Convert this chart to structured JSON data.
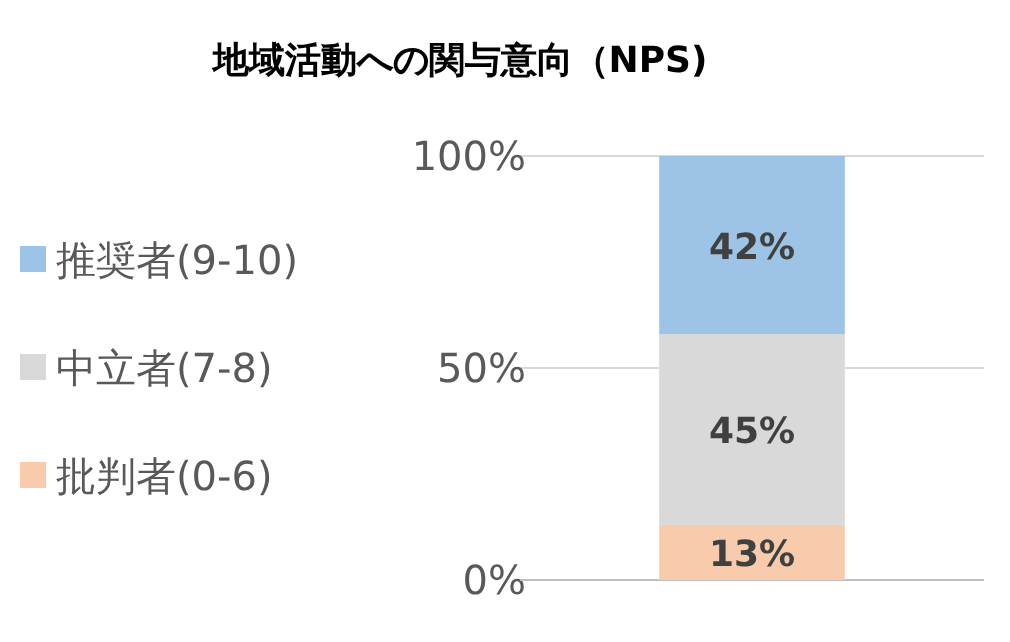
{
  "chart_data": {
    "type": "bar",
    "stacked": true,
    "title": "地域活動への関与意向（NPS)",
    "categories": [
      null
    ],
    "series": [
      {
        "name": "批判者(0-6)",
        "color": "#f8cbad",
        "values": [
          13
        ],
        "value_labels": [
          "13%"
        ]
      },
      {
        "name": "中立者(7-8)",
        "color": "#d9d9d9",
        "values": [
          45
        ],
        "value_labels": [
          "45%"
        ]
      },
      {
        "name": "推奨者(9-10)",
        "color": "#9dc3e6",
        "values": [
          42
        ],
        "value_labels": [
          "42%"
        ]
      }
    ],
    "ylim": [
      0,
      100
    ],
    "yticks": [
      {
        "value": 0,
        "label": "0%"
      },
      {
        "value": 50,
        "label": "50%"
      },
      {
        "value": 100,
        "label": "100%"
      }
    ],
    "grid": "y",
    "legend": "left"
  }
}
